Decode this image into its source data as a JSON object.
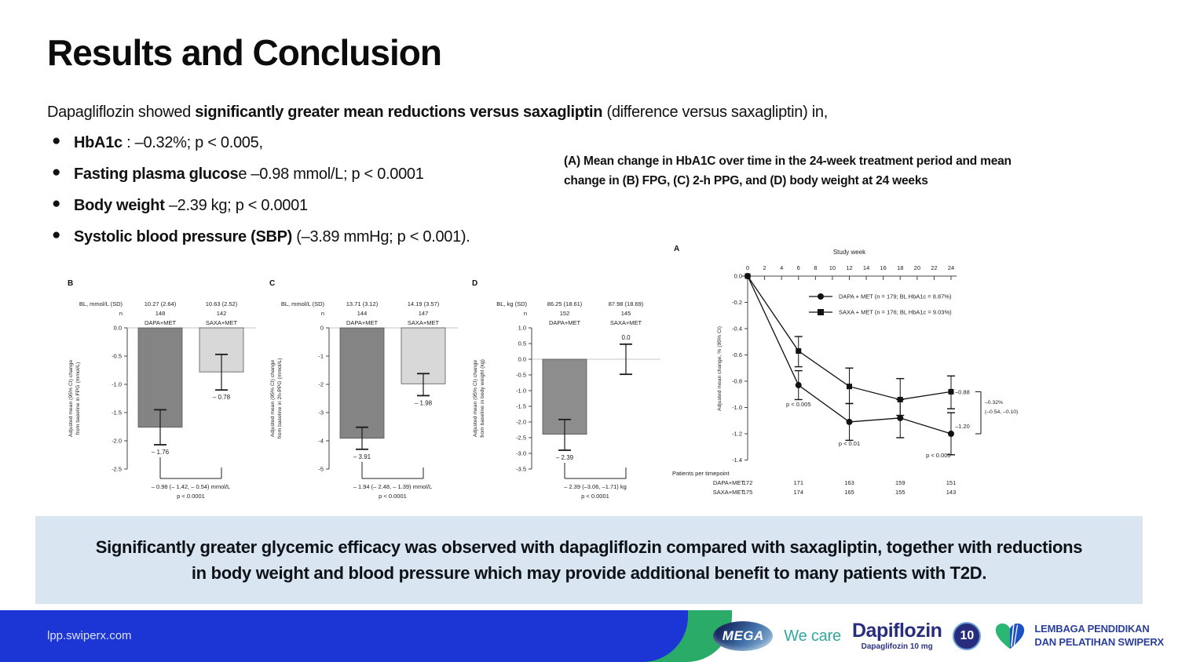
{
  "title": "Results and Conclusion",
  "intro": {
    "pre": "Dapagliflozin showed ",
    "bold": "significantly greater mean reductions versus saxagliptin",
    "post": " (difference versus saxagliptin) in,"
  },
  "bullets": [
    {
      "bold": "HbA1c",
      "rest": " : –0.32%; p < 0.005,"
    },
    {
      "bold": "Fasting plasma glucos",
      "rest": "e –0.98 mmol/L; p < 0.0001"
    },
    {
      "bold": "Body weight",
      "rest": " –2.39 kg; p < 0.0001"
    },
    {
      "bold": "Systolic blood pressure (SBP)",
      "rest": " (–3.89 mmHg; p < 0.001)."
    }
  ],
  "figure_caption": "(A) Mean change in HbA1C over time in the 24-week treatment period and mean change in (B) FPG, (C) 2-h PPG, and (D) body weight at 24 weeks",
  "conclusion": "Significantly greater glycemic efficacy was observed with dapagliflozin compared with saxagliptin, together with reductions in body weight and blood pressure which may provide additional benefit to many patients with T2D.",
  "footer": {
    "url": "lpp.swiperx.com",
    "mega": "MEGA",
    "we_care": "We care",
    "brand": "Dapiflozin",
    "brand_sub": "Dapaglifozin 10 mg",
    "badge": "10",
    "org_line1": "LEMBAGA PENDIDIKAN",
    "org_line2": "DAN PELATIHAN SWIPERX"
  },
  "colors": {
    "conclusion_box_bg": "#d9e6f2",
    "footer_blue": "#1c36d5",
    "footer_green": "#2aab67",
    "wecare_teal": "#33a89f",
    "brand_navy": "#292d7d",
    "org_blue": "#2b3f9e",
    "bar_dark": "#848484",
    "bar_light": "#d8d8d8"
  },
  "chart_data": [
    {
      "type": "line",
      "panel": "A",
      "xlabel": "Study week",
      "ylabel": "Adjusted mean change, % (95% CI)",
      "xticks": [
        0,
        2,
        4,
        6,
        8,
        10,
        12,
        14,
        16,
        18,
        20,
        22,
        24
      ],
      "xlim": [
        0,
        24
      ],
      "ylim": [
        0,
        -1.4
      ],
      "yticks": [
        "0.0",
        "-0.2",
        "-0.4",
        "-0.6",
        "-0.8",
        "-1.0",
        "-1.2",
        "-1.4"
      ],
      "legend_position": "upper center inside",
      "series": [
        {
          "name": "DAPA + MET (n = 179; BL HbA1c = 8.87%)",
          "marker": "circle",
          "x": [
            0,
            6,
            12,
            18,
            24
          ],
          "y": [
            0,
            -0.83,
            -1.11,
            -1.08,
            -1.2
          ],
          "hi": [
            0,
            -0.72,
            -0.97,
            -0.94,
            -1.04
          ],
          "lo": [
            0,
            -0.94,
            -1.25,
            -1.23,
            -1.36
          ]
        },
        {
          "name": "SAXA + MET (n = 176; BL HbA1c = 9.03%)",
          "marker": "square",
          "x": [
            0,
            6,
            12,
            18,
            24
          ],
          "y": [
            0,
            -0.57,
            -0.84,
            -0.94,
            -0.88
          ],
          "hi": [
            0,
            -0.46,
            -0.7,
            -0.78,
            -0.76
          ],
          "lo": [
            0,
            -0.69,
            -0.97,
            -1.06,
            -1.01
          ]
        }
      ],
      "annotations": [
        {
          "x": 6,
          "y": -0.99,
          "text": "p < 0.005"
        },
        {
          "x": 12,
          "y": -1.29,
          "text": "p < 0.01"
        },
        {
          "x": 22.5,
          "y": -1.38,
          "text": "p < 0.005"
        }
      ],
      "end_labels": [
        {
          "text": "–0.88",
          "value": -0.88
        },
        {
          "text": "–1.20",
          "value": -1.2
        }
      ],
      "difference": {
        "line1": "–0.32%",
        "line2": "(–0.54, –0.10)"
      },
      "patients": {
        "title": "Patients per timepoint",
        "weeks": [
          0,
          6,
          12,
          18,
          24
        ],
        "rows": [
          {
            "name": "DAPA+MET",
            "values": [
              "172",
              "171",
              "163",
              "159",
              "151"
            ]
          },
          {
            "name": "SAXA+MET",
            "values": [
              "175",
              "174",
              "165",
              "155",
              "143"
            ]
          }
        ]
      }
    },
    {
      "type": "bar",
      "panel": "B",
      "bl_label": "BL, mmol/L (SD)",
      "n_label": "n",
      "ylabel_line1": "Adjusted mean (95% CI) change",
      "ylabel_line2": "from baseline in FPG (mmol/L)",
      "ylim": [
        0,
        -2.5
      ],
      "yticks": [
        "0.0",
        "-0.5",
        "-1.0",
        "-1.5",
        "-2.0",
        "-2.5"
      ],
      "groups": [
        {
          "name": "DAPA+MET",
          "bl": "10.27 (2.64)",
          "n": "148",
          "value": -1.76,
          "hi": -1.45,
          "lo": -2.07,
          "label": "– 1.76",
          "fill": "#848484"
        },
        {
          "name": "SAXA+MET",
          "bl": "10.63 (2.52)",
          "n": "142",
          "value": -0.78,
          "hi": -0.47,
          "lo": -1.1,
          "label": "– 0.78",
          "fill": "#d8d8d8"
        }
      ],
      "difference": "– 0.98 (– 1.42, – 0.54) mmol/L",
      "p_value": "p < 0.0001"
    },
    {
      "type": "bar",
      "panel": "C",
      "bl_label": "BL, mmol/L (SD)",
      "n_label": "n",
      "ylabel_line1": "Adjusted mean (95% CI) change",
      "ylabel_line2": "from baseline in 2h-PPG (mmol/L)",
      "ylim": [
        0,
        -5
      ],
      "yticks": [
        "0",
        "-1",
        "-2",
        "-3",
        "-4",
        "-5"
      ],
      "groups": [
        {
          "name": "DAPA+MET",
          "bl": "13.71 (3.12)",
          "n": "144",
          "value": -3.91,
          "hi": -3.52,
          "lo": -4.3,
          "label": "– 3.91",
          "fill": "#848484"
        },
        {
          "name": "SAXA+MET",
          "bl": "14.19 (3.57)",
          "n": "147",
          "value": -1.98,
          "hi": -1.62,
          "lo": -2.4,
          "label": "– 1.98",
          "fill": "#d8d8d8"
        }
      ],
      "difference": "– 1.94 (– 2.48, – 1.39) mmol/L",
      "p_value": "p < 0.0001"
    },
    {
      "type": "bar",
      "panel": "D",
      "bl_label": "BL, kg (SD)",
      "n_label": "n",
      "ylabel_line1": "Adjusted mean (95% CI) change",
      "ylabel_line2": "from baseline in body weight (kg)",
      "ylim": [
        1.0,
        -3.5
      ],
      "yticks": [
        "1.0",
        "0.5",
        "0.0",
        "-0.5",
        "-1.0",
        "-1.5",
        "-2.0",
        "-2.5",
        "-3.0",
        "-3.5"
      ],
      "groups": [
        {
          "name": "DAPA+MET",
          "bl": "86.25 (18.61)",
          "n": "152",
          "value": -2.39,
          "hi": -1.92,
          "lo": -2.9,
          "label": "– 2.39",
          "fill": "#8d8d8d"
        },
        {
          "name": "SAXA+MET",
          "bl": "87.98 (18.69)",
          "n": "145",
          "value": 0,
          "hi": 0.48,
          "lo": -0.48,
          "label": "0.0",
          "fill": "#d8d8d8"
        }
      ],
      "difference": "– 2.39 (–3.06, –1.71) kg",
      "p_value": "p < 0.0001"
    }
  ]
}
